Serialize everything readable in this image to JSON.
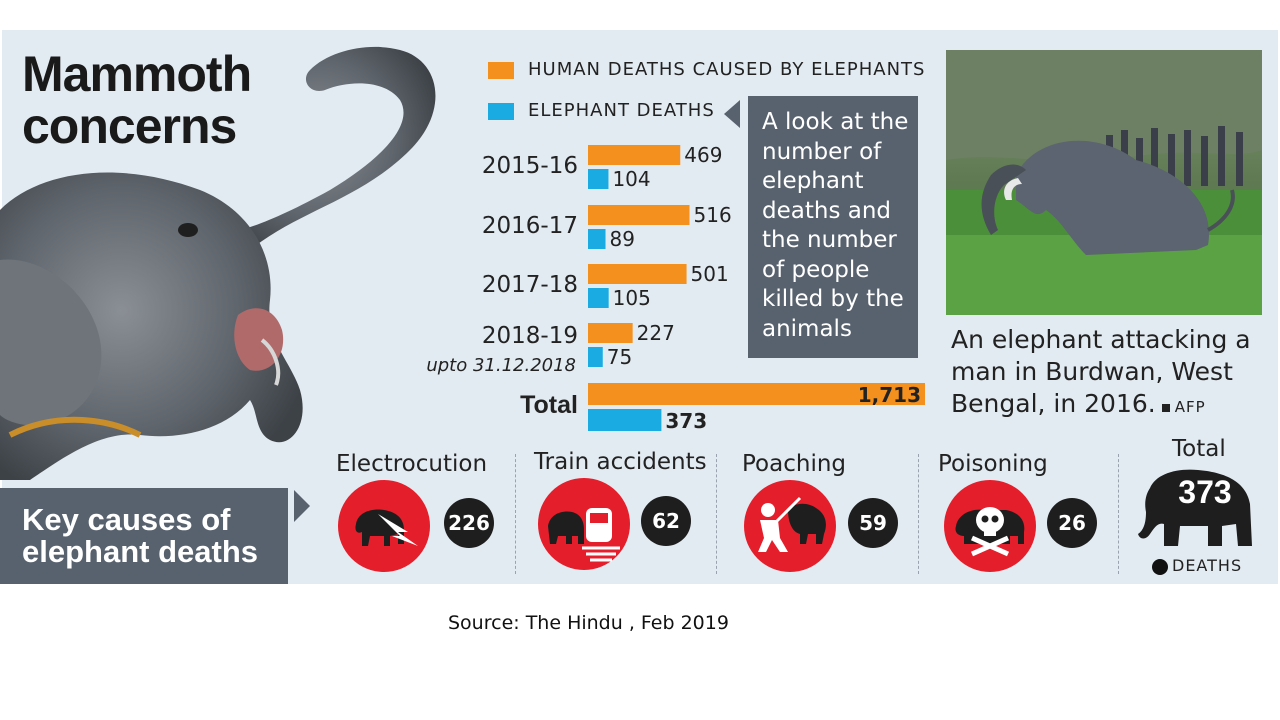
{
  "title": [
    "Mammoth",
    "concerns"
  ],
  "note": "A look at the number of elephant deaths and the number of people killed by the animals",
  "photo_caption": "An elephant attacking a man in Burdwan, West Bengal, in 2016.",
  "photo_credit": "AFP",
  "causes": {
    "title": [
      "Key causes of",
      "elephant deaths"
    ],
    "items": [
      {
        "label": "Electrocution",
        "count": "226",
        "icon": "lightning-elephant-icon"
      },
      {
        "label": "Train accidents",
        "count": "62",
        "icon": "train-elephant-icon"
      },
      {
        "label": "Poaching",
        "count": "59",
        "icon": "poacher-elephant-icon"
      },
      {
        "label": "Poisoning",
        "count": "26",
        "icon": "skull-elephant-icon"
      }
    ],
    "total_label": "Total",
    "total_value": "373",
    "total_unit": "DEATHS"
  },
  "source": "Source: The Hindu , Feb 2019",
  "colors": {
    "human": "#f4901e",
    "elephant": "#19abe1",
    "panel": "#e3ebf2",
    "box": "#58626f",
    "red": "#e41e2b"
  },
  "chart_data": {
    "type": "bar",
    "orientation": "horizontal",
    "categories": [
      "2015-16",
      "2016-17",
      "2017-18",
      "2018-19",
      "Total"
    ],
    "category_notes": [
      "",
      "",
      "",
      "upto 31.12.2018",
      ""
    ],
    "series": [
      {
        "name": "HUMAN DEATHS CAUSED BY ELEPHANTS",
        "values": [
          469,
          516,
          501,
          227,
          1713
        ],
        "labels": [
          "469",
          "516",
          "501",
          "227",
          "1,713"
        ]
      },
      {
        "name": "ELEPHANT DEATHS",
        "values": [
          104,
          89,
          105,
          75,
          373
        ],
        "labels": [
          "104",
          "89",
          "105",
          "75",
          "373"
        ]
      }
    ],
    "legend_position": "top",
    "grid": false
  }
}
